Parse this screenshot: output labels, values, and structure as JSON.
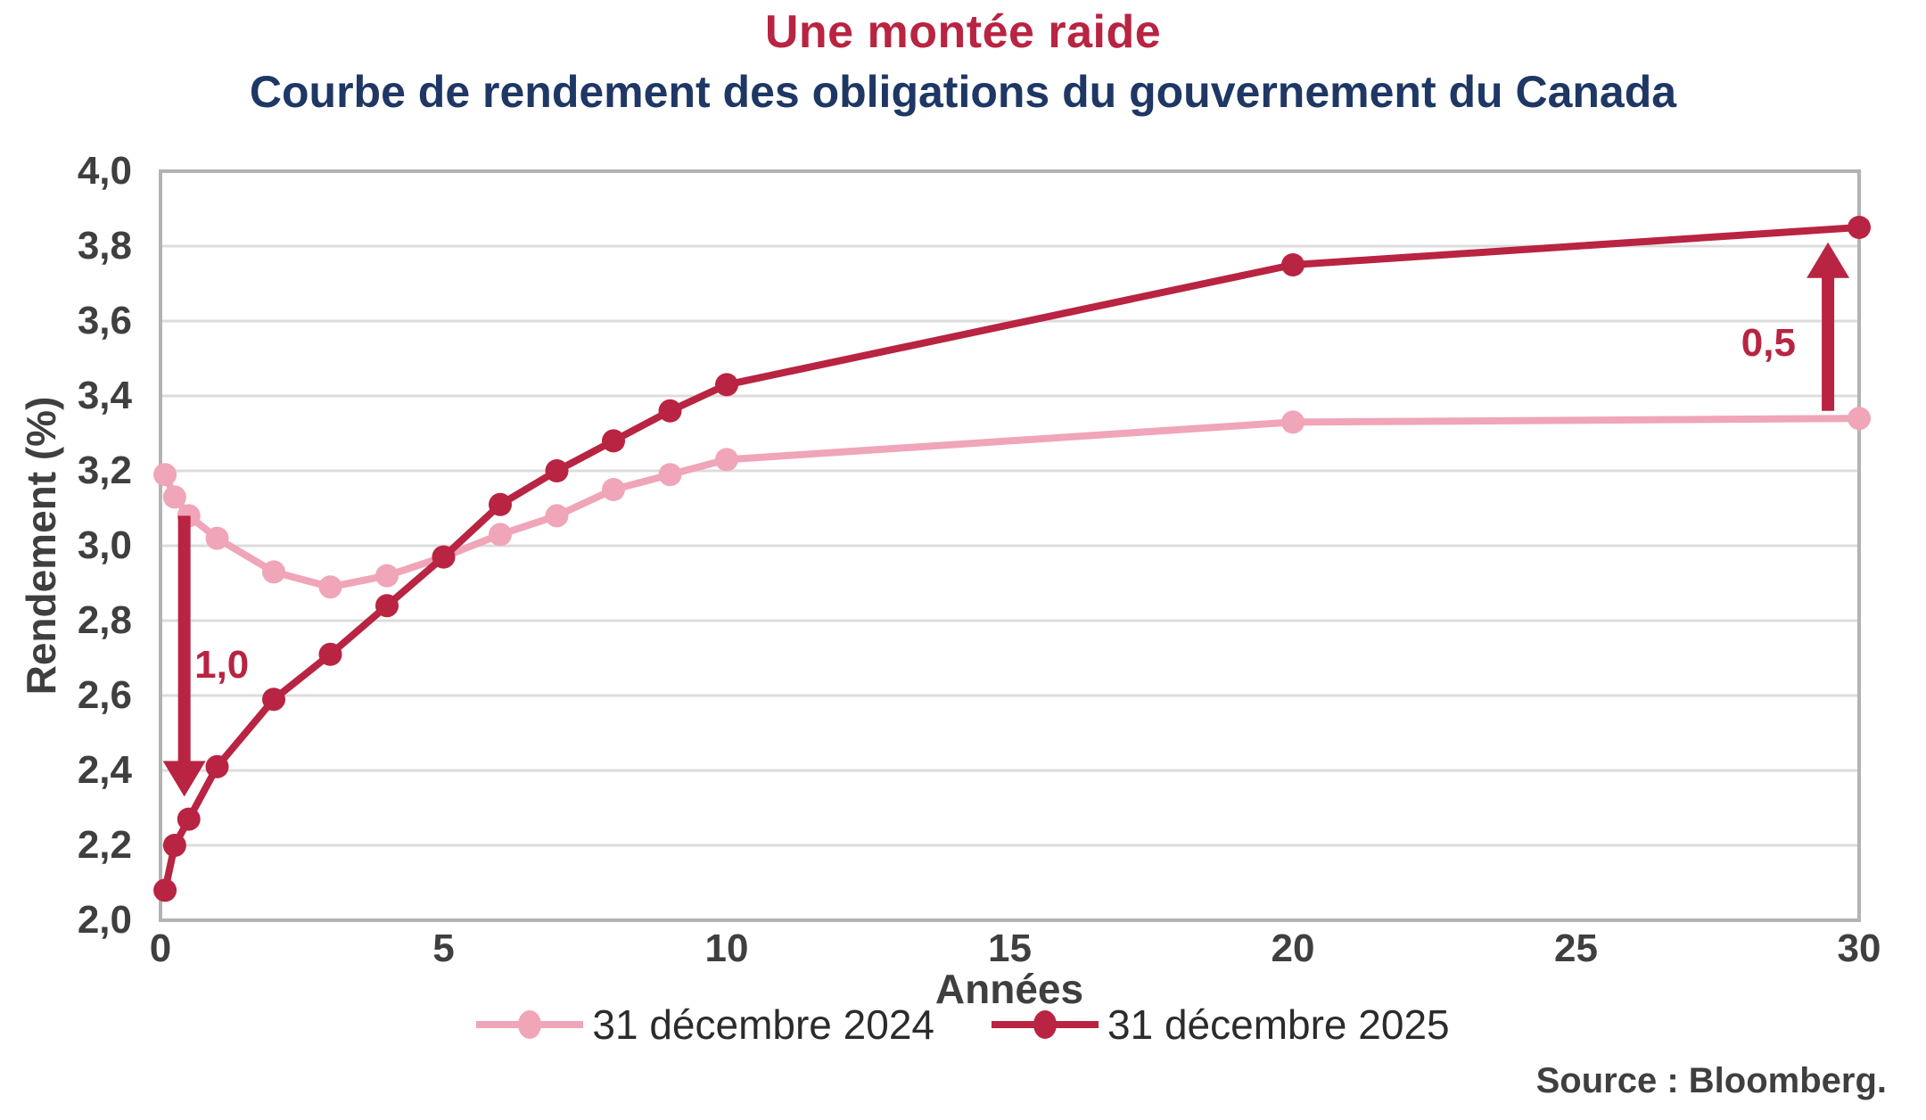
{
  "page": {
    "title": "Une montée raide",
    "subtitle": "Courbe de rendement des obligations du gouvernement du Canada",
    "source": "Source : Bloomberg."
  },
  "colors": {
    "accent_red": "#B82441",
    "pink": "#F0A5B8",
    "navy": "#1E3765",
    "axis_text": "#3F3F3F",
    "gridline": "#DCDCDC",
    "plot_border": "#B3B3B3"
  },
  "chart_data": {
    "type": "line",
    "title": "Une montée raide",
    "subtitle": "Courbe de rendement des obligations du gouvernement du Canada",
    "xlabel": "Années",
    "ylabel": "Rendement (%)",
    "xlim": [
      0,
      30
    ],
    "ylim": [
      2.0,
      4.0
    ],
    "grid": "horizontal",
    "legend_position": "bottom",
    "x_ticks": [
      {
        "value": 0,
        "label": "0"
      },
      {
        "value": 5,
        "label": "5"
      },
      {
        "value": 10,
        "label": "10"
      },
      {
        "value": 15,
        "label": "15"
      },
      {
        "value": 20,
        "label": "20"
      },
      {
        "value": 25,
        "label": "25"
      },
      {
        "value": 30,
        "label": "30"
      }
    ],
    "y_ticks": [
      {
        "value": 2.0,
        "label": "2,0"
      },
      {
        "value": 2.2,
        "label": "2,2"
      },
      {
        "value": 2.4,
        "label": "2,4"
      },
      {
        "value": 2.6,
        "label": "2,6"
      },
      {
        "value": 2.8,
        "label": "2,8"
      },
      {
        "value": 3.0,
        "label": "3,0"
      },
      {
        "value": 3.2,
        "label": "3,2"
      },
      {
        "value": 3.4,
        "label": "3,4"
      },
      {
        "value": 3.6,
        "label": "3,6"
      },
      {
        "value": 3.8,
        "label": "3,8"
      },
      {
        "value": 4.0,
        "label": "4,0"
      }
    ],
    "series": [
      {
        "name": "31 décembre 2024",
        "color": "#F0A5B8",
        "x": [
          0.08,
          0.25,
          0.5,
          1,
          2,
          3,
          4,
          5,
          6,
          7,
          8,
          9,
          10,
          20,
          30
        ],
        "y": [
          3.19,
          3.13,
          3.08,
          3.02,
          2.93,
          2.89,
          2.92,
          2.97,
          3.03,
          3.08,
          3.15,
          3.19,
          3.23,
          3.33,
          3.34
        ]
      },
      {
        "name": "31 décembre 2025",
        "color": "#B82441",
        "x": [
          0.08,
          0.25,
          0.5,
          1,
          2,
          3,
          4,
          5,
          6,
          7,
          8,
          9,
          10,
          20,
          30
        ],
        "y": [
          2.08,
          2.2,
          2.27,
          2.41,
          2.59,
          2.71,
          2.84,
          2.97,
          3.11,
          3.2,
          3.28,
          3.36,
          3.43,
          3.75,
          3.85
        ]
      }
    ],
    "annotations": [
      {
        "label": "1,0",
        "x": 0.42,
        "y_from": 3.08,
        "y_to": 2.33,
        "direction": "down",
        "label_x": 0.6,
        "label_y": 2.68,
        "label_anchor": "left"
      },
      {
        "label": "0,5",
        "x": 29.45,
        "y_from": 3.36,
        "y_to": 3.81,
        "direction": "up",
        "label_x": 28.4,
        "label_y": 3.54,
        "label_anchor": "center"
      }
    ]
  }
}
